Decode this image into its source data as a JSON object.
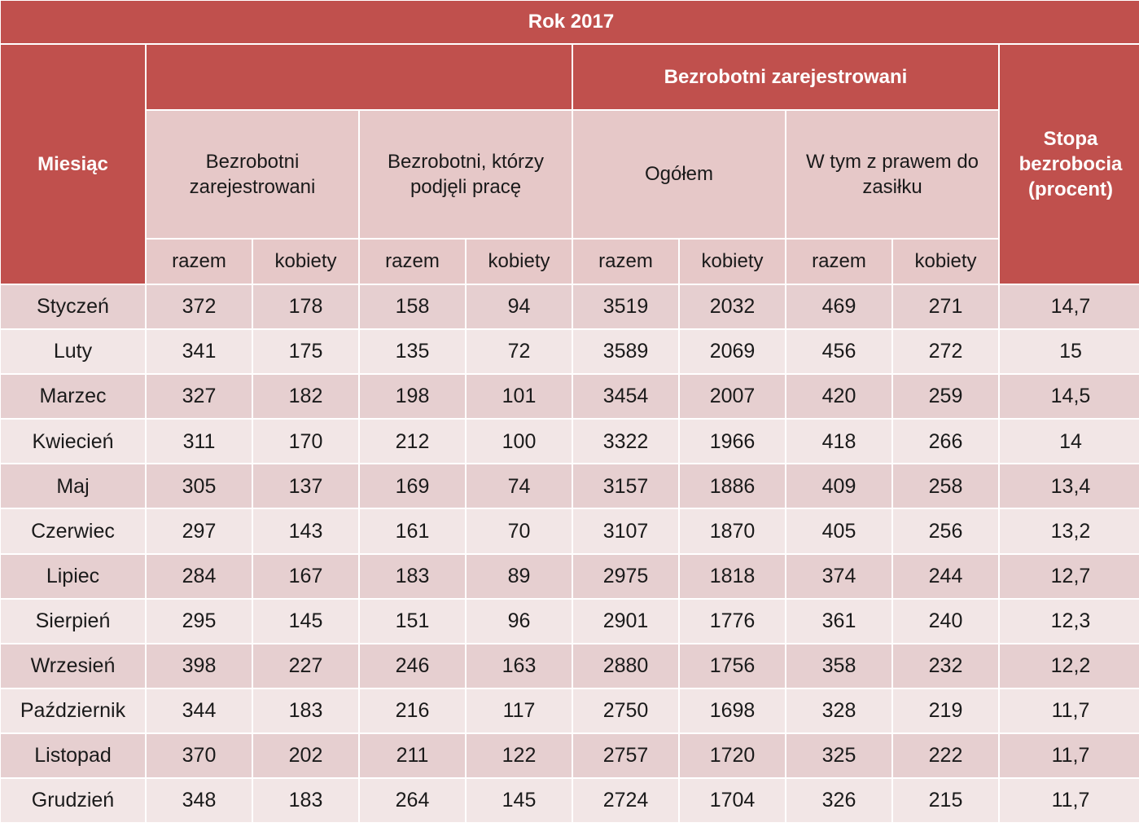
{
  "title": "Rok 2017",
  "headers": {
    "month": "Miesiąc",
    "group_blank": "",
    "group_registered": "Bezrobotni zarejestrowani",
    "rate": "Stopa bezrobocia (procent)",
    "subgroups": [
      "Bezrobotni zarejestrowani",
      "Bezrobotni, którzy podjęli pracę",
      "Ogółem",
      "W tym z prawem do zasiłku"
    ],
    "subcols": [
      "razem",
      "kobiety",
      "razem",
      "kobiety",
      "razem",
      "kobiety",
      "razem",
      "kobiety"
    ]
  },
  "rows": [
    {
      "month": "Styczeń",
      "values": [
        "372",
        "178",
        "158",
        "94",
        "3519",
        "2032",
        "469",
        "271"
      ],
      "rate": "14,7"
    },
    {
      "month": "Luty",
      "values": [
        "341",
        "175",
        "135",
        "72",
        "3589",
        "2069",
        "456",
        "272"
      ],
      "rate": "15"
    },
    {
      "month": "Marzec",
      "values": [
        "327",
        "182",
        "198",
        "101",
        "3454",
        "2007",
        "420",
        "259"
      ],
      "rate": "14,5"
    },
    {
      "month": "Kwiecień",
      "values": [
        "311",
        "170",
        "212",
        "100",
        "3322",
        "1966",
        "418",
        "266"
      ],
      "rate": "14"
    },
    {
      "month": "Maj",
      "values": [
        "305",
        "137",
        "169",
        "74",
        "3157",
        "1886",
        "409",
        "258"
      ],
      "rate": "13,4"
    },
    {
      "month": "Czerwiec",
      "values": [
        "297",
        "143",
        "161",
        "70",
        "3107",
        "1870",
        "405",
        "256"
      ],
      "rate": "13,2"
    },
    {
      "month": "Lipiec",
      "values": [
        "284",
        "167",
        "183",
        "89",
        "2975",
        "1818",
        "374",
        "244"
      ],
      "rate": "12,7"
    },
    {
      "month": "Sierpień",
      "values": [
        "295",
        "145",
        "151",
        "96",
        "2901",
        "1776",
        "361",
        "240"
      ],
      "rate": "12,3"
    },
    {
      "month": "Wrzesień",
      "values": [
        "398",
        "227",
        "246",
        "163",
        "2880",
        "1756",
        "358",
        "232"
      ],
      "rate": "12,2"
    },
    {
      "month": "Październik",
      "values": [
        "344",
        "183",
        "216",
        "117",
        "2750",
        "1698",
        "328",
        "219"
      ],
      "rate": "11,7"
    },
    {
      "month": "Listopad",
      "values": [
        "370",
        "202",
        "211",
        "122",
        "2757",
        "1720",
        "325",
        "222"
      ],
      "rate": "11,7"
    },
    {
      "month": "Grudzień",
      "values": [
        "348",
        "183",
        "264",
        "145",
        "2724",
        "1704",
        "326",
        "215"
      ],
      "rate": "11,7"
    }
  ]
}
